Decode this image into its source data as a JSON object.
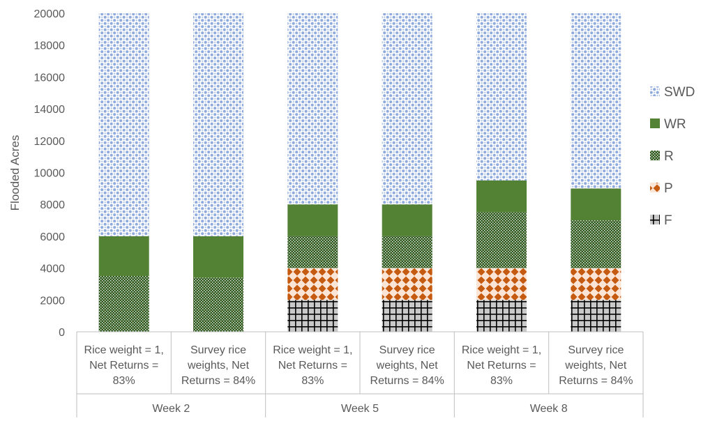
{
  "chart_data": {
    "type": "bar",
    "stacked": true,
    "ylabel": "Flooded Acres",
    "ylim": [
      0,
      20000
    ],
    "yticks": [
      0,
      2000,
      4000,
      6000,
      8000,
      10000,
      12000,
      14000,
      16000,
      18000,
      20000
    ],
    "grid": false,
    "legend_position": "right",
    "groups": [
      {
        "label": "Week 2",
        "categories": [
          {
            "lines": [
              "Rice weight = 1,",
              "Net Returns =",
              "83%"
            ]
          },
          {
            "lines": [
              "Survey rice",
              "weights, Net",
              "Returns = 84%"
            ]
          }
        ]
      },
      {
        "label": "Week 5",
        "categories": [
          {
            "lines": [
              "Rice weight = 1,",
              "Net Returns =",
              "83%"
            ]
          },
          {
            "lines": [
              "Survey rice",
              "weights, Net",
              "Returns = 84%"
            ]
          }
        ]
      },
      {
        "label": "Week 8",
        "categories": [
          {
            "lines": [
              "Rice weight = 1,",
              "Net Returns =",
              "83%"
            ]
          },
          {
            "lines": [
              "Survey rice",
              "weights, Net",
              "Returns = 84%"
            ]
          }
        ]
      }
    ],
    "series": [
      {
        "name": "F",
        "color": "#bfbfbf",
        "pattern": "grid",
        "values": [
          0,
          0,
          2000,
          2000,
          2000,
          2000
        ]
      },
      {
        "name": "P",
        "color": "#c55a11",
        "pattern": "diamonds",
        "values": [
          0,
          0,
          2000,
          2000,
          2000,
          2000
        ]
      },
      {
        "name": "R",
        "color": "#548235",
        "pattern": "dots",
        "values": [
          3500,
          3400,
          2000,
          2000,
          3500,
          3000
        ]
      },
      {
        "name": "WR",
        "color": "#548235",
        "pattern": "solid",
        "values": [
          2500,
          2600,
          2000,
          2000,
          2000,
          2000
        ]
      },
      {
        "name": "SWD",
        "color": "#8faadc",
        "pattern": "circles",
        "values": [
          14000,
          14000,
          12000,
          12000,
          10500,
          11000
        ]
      }
    ],
    "legend_order": [
      "SWD",
      "WR",
      "R",
      "P",
      "F"
    ]
  }
}
